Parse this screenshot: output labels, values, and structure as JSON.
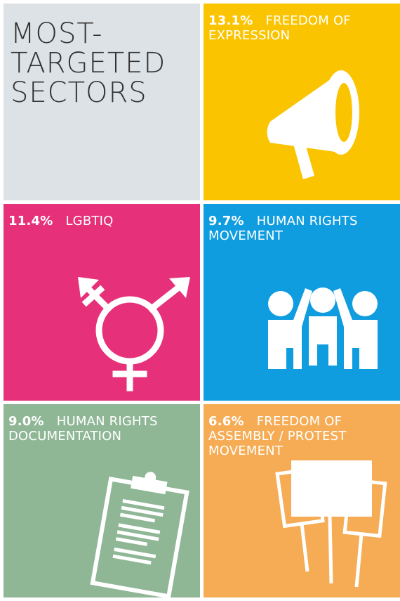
{
  "title": [
    "MOST-",
    "TARGETED",
    "SECTORS"
  ],
  "tiles": [
    {
      "percent": "13.1%",
      "label": [
        "FREEDOM OF",
        "EXPRESSION"
      ]
    },
    {
      "percent": "11.4%",
      "label": [
        "LGBTIQ"
      ]
    },
    {
      "percent": "9.7%",
      "label": [
        "HUMAN RIGHTS",
        "MOVEMENT"
      ]
    },
    {
      "percent": "9.0%",
      "label": [
        "HUMAN RIGHTS",
        "DOCUMENTATION"
      ]
    },
    {
      "percent": "6.6%",
      "label": [
        "FREEDOM OF",
        "ASSEMBLY / PROTEST",
        "MOVEMENT"
      ]
    }
  ]
}
